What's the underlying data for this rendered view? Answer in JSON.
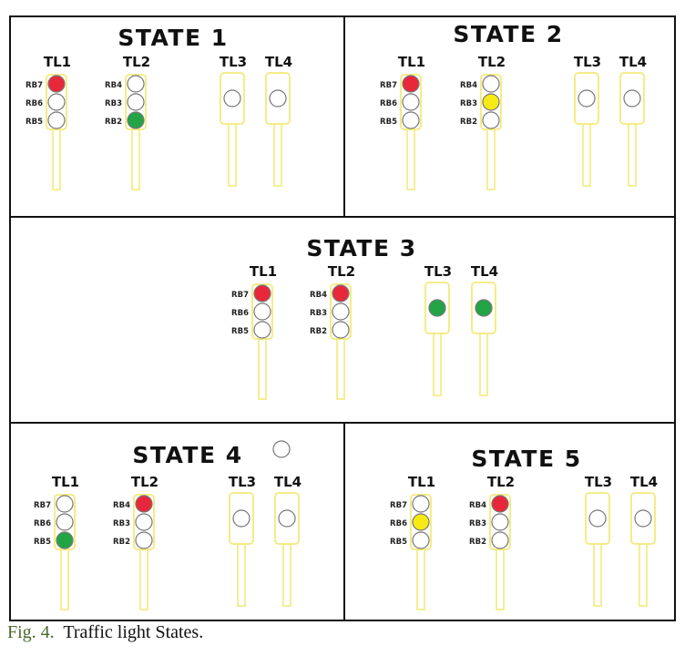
{
  "colors": {
    "red": "#e8283a",
    "green": "#22a446",
    "yellow": "#f7ea14",
    "off": "#ffffff",
    "housing": "#f3ea7a",
    "frame": "#111111"
  },
  "caption": {
    "fig_label": "Fig. 4.",
    "text": "Traffic light States."
  },
  "states": [
    {
      "title": "STATE 1",
      "lights": [
        {
          "name": "TL1",
          "pins": [
            "RB7",
            "RB6",
            "RB5"
          ],
          "lamps": [
            "red",
            "off",
            "off"
          ]
        },
        {
          "name": "TL2",
          "pins": [
            "RB4",
            "RB3",
            "RB2"
          ],
          "lamps": [
            "off",
            "off",
            "green"
          ]
        },
        {
          "name": "TL3",
          "pins": [],
          "lamps": [
            "off"
          ]
        },
        {
          "name": "TL4",
          "pins": [],
          "lamps": [
            "off"
          ]
        }
      ]
    },
    {
      "title": "STATE 2",
      "lights": [
        {
          "name": "TL1",
          "pins": [
            "RB7",
            "RB6",
            "RB5"
          ],
          "lamps": [
            "red",
            "off",
            "off"
          ]
        },
        {
          "name": "TL2",
          "pins": [
            "RB4",
            "RB3",
            "RB2"
          ],
          "lamps": [
            "off",
            "yellow",
            "off"
          ]
        },
        {
          "name": "TL3",
          "pins": [],
          "lamps": [
            "off"
          ]
        },
        {
          "name": "TL4",
          "pins": [],
          "lamps": [
            "off"
          ]
        }
      ]
    },
    {
      "title": "STATE 3",
      "lights": [
        {
          "name": "TL1",
          "pins": [
            "RB7",
            "RB6",
            "RB5"
          ],
          "lamps": [
            "red",
            "off",
            "off"
          ]
        },
        {
          "name": "TL2",
          "pins": [
            "RB4",
            "RB3",
            "RB2"
          ],
          "lamps": [
            "red",
            "off",
            "off"
          ]
        },
        {
          "name": "TL3",
          "pins": [],
          "lamps": [
            "green"
          ]
        },
        {
          "name": "TL4",
          "pins": [],
          "lamps": [
            "green"
          ]
        }
      ]
    },
    {
      "title": "STATE 4",
      "lights": [
        {
          "name": "TL1",
          "pins": [
            "RB7",
            "RB6",
            "RB5"
          ],
          "lamps": [
            "off",
            "off",
            "green"
          ]
        },
        {
          "name": "TL2",
          "pins": [
            "RB4",
            "RB3",
            "RB2"
          ],
          "lamps": [
            "red",
            "off",
            "off"
          ]
        },
        {
          "name": "TL3",
          "pins": [],
          "lamps": [
            "off"
          ]
        },
        {
          "name": "TL4",
          "pins": [],
          "lamps": [
            "off"
          ]
        }
      ]
    },
    {
      "title": "STATE 5",
      "lights": [
        {
          "name": "TL1",
          "pins": [
            "RB7",
            "RB6",
            "RB5"
          ],
          "lamps": [
            "off",
            "yellow",
            "off"
          ]
        },
        {
          "name": "TL2",
          "pins": [
            "RB4",
            "RB3",
            "RB2"
          ],
          "lamps": [
            "red",
            "off",
            "off"
          ]
        },
        {
          "name": "TL3",
          "pins": [],
          "lamps": [
            "off"
          ]
        },
        {
          "name": "TL4",
          "pins": [],
          "lamps": [
            "off"
          ]
        }
      ]
    }
  ]
}
